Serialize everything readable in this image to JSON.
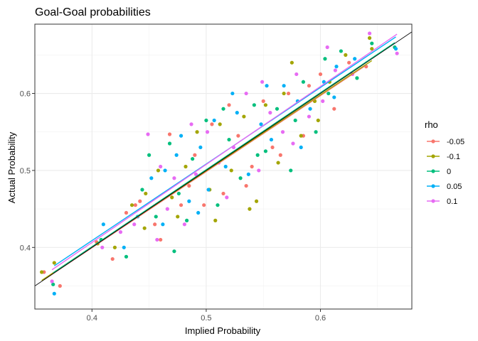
{
  "chart_data": {
    "type": "scatter",
    "title": "Goal-Goal probabilities",
    "xlabel": "Implied Probability",
    "ylabel": "Actual Probability",
    "xlim": [
      0.35,
      0.68
    ],
    "ylim": [
      0.32,
      0.69
    ],
    "xticks": [
      0.4,
      0.5,
      0.6
    ],
    "yticks": [
      0.4,
      0.5,
      0.6
    ],
    "xtick_labels": [
      "0.4",
      "0.5",
      "0.6"
    ],
    "ytick_labels": [
      "0.4",
      "0.5",
      "0.6"
    ],
    "grid": true,
    "legend": {
      "title": "rho",
      "position": "right"
    },
    "reference_line": {
      "slope": 1,
      "intercept": 0,
      "color": "#000000"
    },
    "series": [
      {
        "name": "-0.05",
        "color": "#F8766D",
        "points": [
          [
            0.358,
            0.368
          ],
          [
            0.372,
            0.35
          ],
          [
            0.404,
            0.407
          ],
          [
            0.418,
            0.385
          ],
          [
            0.43,
            0.445
          ],
          [
            0.442,
            0.46
          ],
          [
            0.455,
            0.43
          ],
          [
            0.468,
            0.547
          ],
          [
            0.478,
            0.455
          ],
          [
            0.49,
            0.52
          ],
          [
            0.505,
            0.56
          ],
          [
            0.515,
            0.47
          ],
          [
            0.528,
            0.545
          ],
          [
            0.54,
            0.505
          ],
          [
            0.55,
            0.59
          ],
          [
            0.558,
            0.53
          ],
          [
            0.572,
            0.6
          ],
          [
            0.585,
            0.545
          ],
          [
            0.6,
            0.625
          ],
          [
            0.612,
            0.58
          ],
          [
            0.625,
            0.64
          ],
          [
            0.64,
            0.635
          ],
          [
            0.438,
            0.455
          ],
          [
            0.46,
            0.41
          ],
          [
            0.485,
            0.48
          ],
          [
            0.52,
            0.585
          ],
          [
            0.535,
            0.48
          ],
          [
            0.565,
            0.52
          ],
          [
            0.59,
            0.61
          ],
          [
            0.498,
            0.455
          ]
        ]
      },
      {
        "name": "-0.1",
        "color": "#A3A500",
        "points": [
          [
            0.356,
            0.368
          ],
          [
            0.367,
            0.38
          ],
          [
            0.405,
            0.405
          ],
          [
            0.42,
            0.4
          ],
          [
            0.435,
            0.455
          ],
          [
            0.447,
            0.47
          ],
          [
            0.458,
            0.5
          ],
          [
            0.47,
            0.465
          ],
          [
            0.482,
            0.505
          ],
          [
            0.492,
            0.55
          ],
          [
            0.503,
            0.475
          ],
          [
            0.512,
            0.56
          ],
          [
            0.522,
            0.5
          ],
          [
            0.533,
            0.57
          ],
          [
            0.544,
            0.46
          ],
          [
            0.552,
            0.585
          ],
          [
            0.563,
            0.51
          ],
          [
            0.575,
            0.64
          ],
          [
            0.583,
            0.545
          ],
          [
            0.595,
            0.59
          ],
          [
            0.608,
            0.615
          ],
          [
            0.622,
            0.65
          ],
          [
            0.643,
            0.672
          ],
          [
            0.645,
            0.658
          ],
          [
            0.446,
            0.425
          ],
          [
            0.475,
            0.44
          ],
          [
            0.508,
            0.435
          ],
          [
            0.538,
            0.45
          ],
          [
            0.568,
            0.6
          ],
          [
            0.598,
            0.565
          ]
        ]
      },
      {
        "name": "0",
        "color": "#00BF7D",
        "points": [
          [
            0.366,
            0.352
          ],
          [
            0.408,
            0.41
          ],
          [
            0.43,
            0.388
          ],
          [
            0.444,
            0.475
          ],
          [
            0.456,
            0.44
          ],
          [
            0.468,
            0.535
          ],
          [
            0.476,
            0.47
          ],
          [
            0.488,
            0.515
          ],
          [
            0.5,
            0.565
          ],
          [
            0.51,
            0.455
          ],
          [
            0.52,
            0.54
          ],
          [
            0.53,
            0.49
          ],
          [
            0.542,
            0.585
          ],
          [
            0.552,
            0.525
          ],
          [
            0.562,
            0.58
          ],
          [
            0.574,
            0.5
          ],
          [
            0.585,
            0.615
          ],
          [
            0.596,
            0.55
          ],
          [
            0.607,
            0.6
          ],
          [
            0.618,
            0.655
          ],
          [
            0.632,
            0.62
          ],
          [
            0.645,
            0.665
          ],
          [
            0.665,
            0.66
          ],
          [
            0.45,
            0.52
          ],
          [
            0.483,
            0.435
          ],
          [
            0.515,
            0.58
          ],
          [
            0.545,
            0.52
          ],
          [
            0.578,
            0.565
          ],
          [
            0.604,
            0.645
          ],
          [
            0.472,
            0.395
          ]
        ]
      },
      {
        "name": "0.05",
        "color": "#00B0F6",
        "points": [
          [
            0.367,
            0.34
          ],
          [
            0.41,
            0.43
          ],
          [
            0.428,
            0.4
          ],
          [
            0.44,
            0.44
          ],
          [
            0.452,
            0.49
          ],
          [
            0.464,
            0.5
          ],
          [
            0.474,
            0.52
          ],
          [
            0.485,
            0.46
          ],
          [
            0.495,
            0.53
          ],
          [
            0.507,
            0.565
          ],
          [
            0.517,
            0.505
          ],
          [
            0.527,
            0.575
          ],
          [
            0.537,
            0.495
          ],
          [
            0.548,
            0.56
          ],
          [
            0.557,
            0.54
          ],
          [
            0.568,
            0.61
          ],
          [
            0.58,
            0.59
          ],
          [
            0.591,
            0.58
          ],
          [
            0.603,
            0.615
          ],
          [
            0.614,
            0.635
          ],
          [
            0.63,
            0.645
          ],
          [
            0.666,
            0.658
          ],
          [
            0.462,
            0.43
          ],
          [
            0.493,
            0.445
          ],
          [
            0.523,
            0.6
          ],
          [
            0.553,
            0.61
          ],
          [
            0.583,
            0.53
          ],
          [
            0.612,
            0.595
          ],
          [
            0.478,
            0.545
          ],
          [
            0.502,
            0.475
          ]
        ]
      },
      {
        "name": "0.1",
        "color": "#E76BF3",
        "points": [
          [
            0.365,
            0.356
          ],
          [
            0.409,
            0.4
          ],
          [
            0.425,
            0.42
          ],
          [
            0.437,
            0.43
          ],
          [
            0.449,
            0.547
          ],
          [
            0.46,
            0.505
          ],
          [
            0.472,
            0.49
          ],
          [
            0.481,
            0.43
          ],
          [
            0.491,
            0.495
          ],
          [
            0.501,
            0.55
          ],
          [
            0.511,
            0.51
          ],
          [
            0.524,
            0.53
          ],
          [
            0.535,
            0.6
          ],
          [
            0.546,
            0.5
          ],
          [
            0.556,
            0.575
          ],
          [
            0.567,
            0.55
          ],
          [
            0.579,
            0.625
          ],
          [
            0.59,
            0.57
          ],
          [
            0.602,
            0.59
          ],
          [
            0.613,
            0.63
          ],
          [
            0.628,
            0.625
          ],
          [
            0.643,
            0.678
          ],
          [
            0.667,
            0.652
          ],
          [
            0.457,
            0.41
          ],
          [
            0.487,
            0.56
          ],
          [
            0.518,
            0.465
          ],
          [
            0.549,
            0.615
          ],
          [
            0.576,
            0.535
          ],
          [
            0.606,
            0.66
          ],
          [
            0.466,
            0.45
          ]
        ]
      }
    ]
  }
}
